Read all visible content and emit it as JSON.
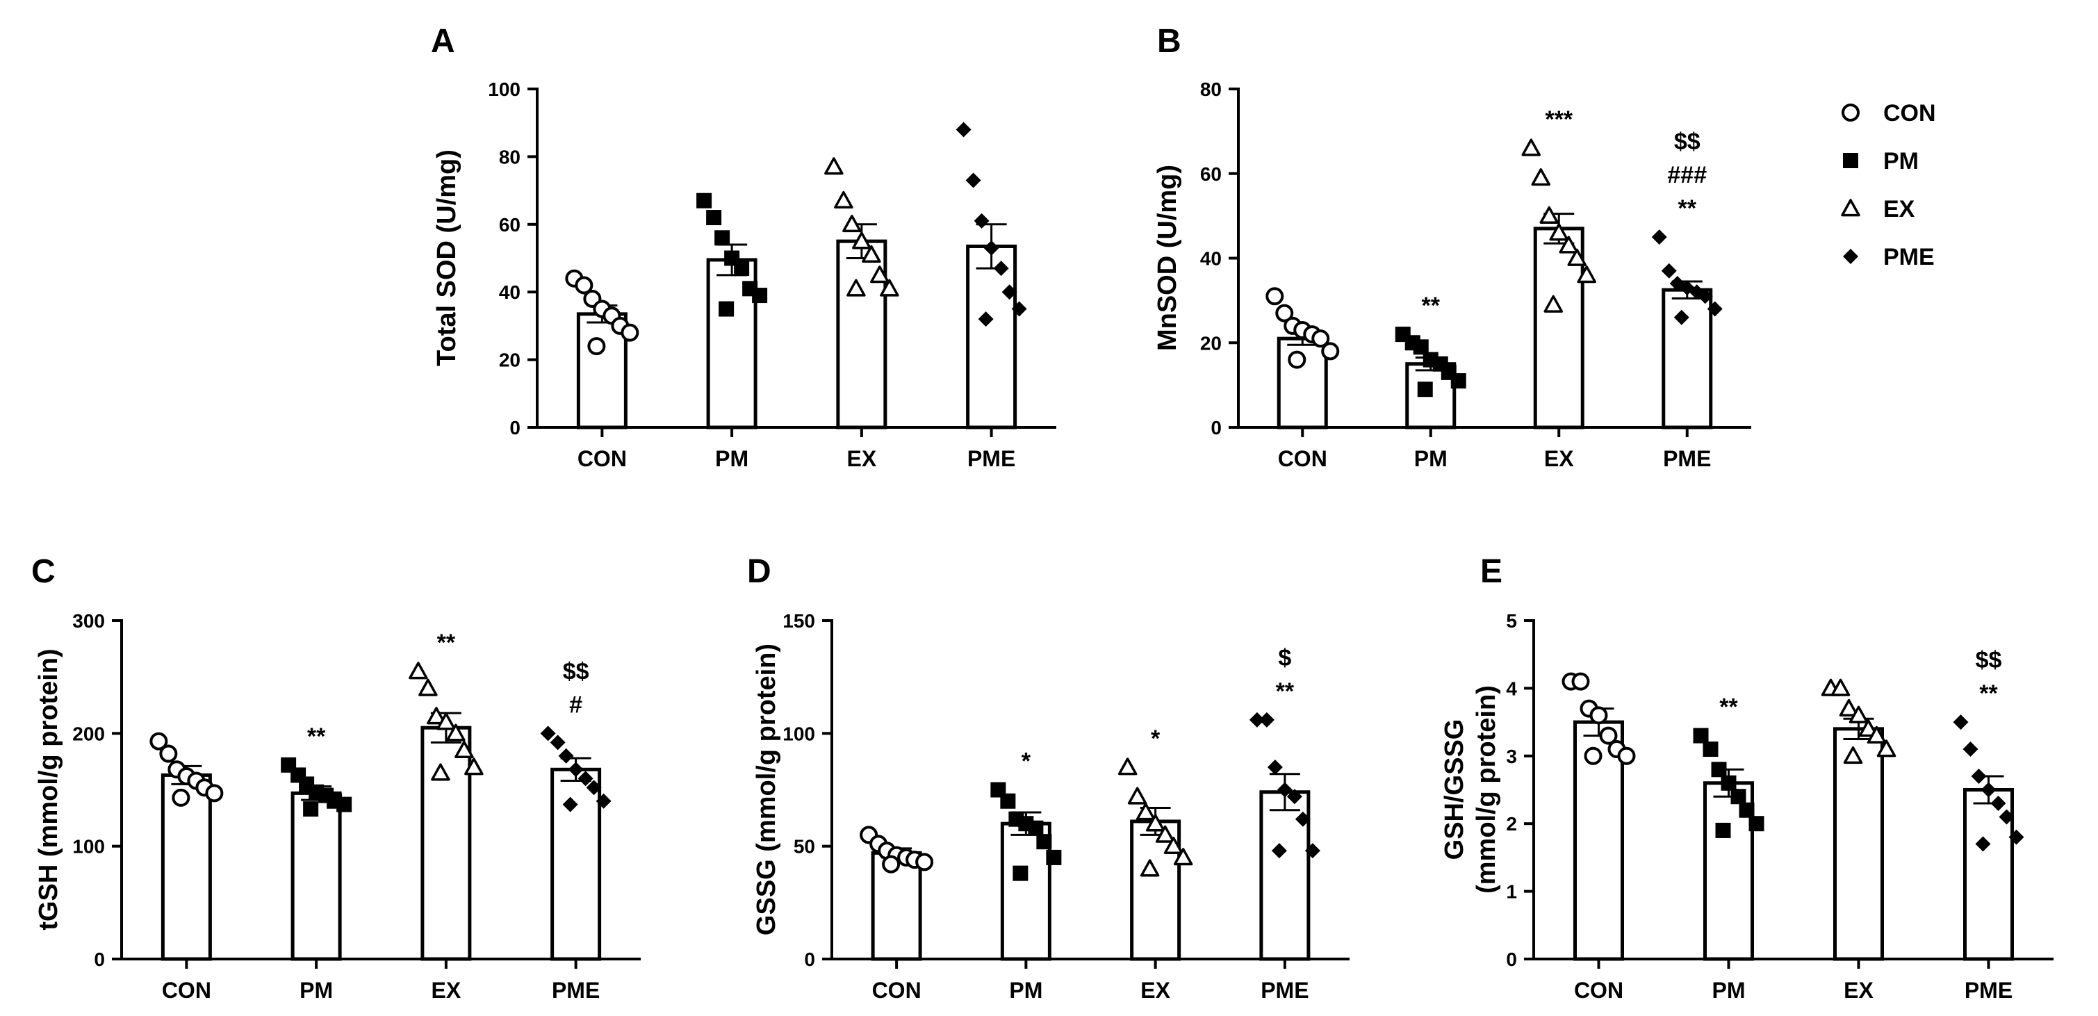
{
  "chart_data": [
    {
      "panel": "A",
      "type": "bar",
      "ylabel": "Total SOD (U/mg)",
      "ylabel_lines": [
        "Total SOD (U/mg)"
      ],
      "ylim": [
        0,
        100
      ],
      "yticks": [
        0,
        20,
        40,
        60,
        80,
        100
      ],
      "categories": [
        "CON",
        "PM",
        "EX",
        "PME"
      ],
      "values": [
        33.5,
        49.5,
        55,
        53.5
      ],
      "sem": [
        2.5,
        4.5,
        5,
        6.5
      ],
      "points": [
        [
          44,
          42,
          38,
          35,
          33,
          30,
          28,
          24
        ],
        [
          67,
          62,
          56,
          50,
          47,
          41,
          39,
          35
        ],
        [
          77,
          67,
          60,
          55,
          51,
          45,
          41,
          41
        ],
        [
          88,
          73,
          61,
          53,
          47,
          40,
          35,
          32
        ]
      ],
      "annotations": [
        [],
        [],
        [],
        []
      ]
    },
    {
      "panel": "B",
      "type": "bar",
      "ylabel": "MnSOD (U/mg)",
      "ylabel_lines": [
        "MnSOD (U/mg)"
      ],
      "ylim": [
        0,
        80
      ],
      "yticks": [
        0,
        20,
        40,
        60,
        80
      ],
      "categories": [
        "CON",
        "PM",
        "EX",
        "PME"
      ],
      "values": [
        21,
        15,
        47,
        32.5
      ],
      "sem": [
        1.5,
        1.5,
        3.5,
        2
      ],
      "points": [
        [
          31,
          27,
          24,
          23,
          22,
          21,
          18,
          16
        ],
        [
          22,
          20,
          19,
          16,
          15,
          13,
          11,
          9
        ],
        [
          66,
          59,
          50,
          46,
          43,
          40,
          36,
          29
        ],
        [
          45,
          37,
          34,
          33,
          32,
          31,
          28,
          26
        ]
      ],
      "annotations": [
        [],
        [
          "**"
        ],
        [
          "***"
        ],
        [
          "$$",
          "###",
          "**"
        ]
      ]
    },
    {
      "panel": "C",
      "type": "bar",
      "ylabel": "tGSH (mmol/g protein)",
      "ylabel_lines": [
        "tGSH (mmol/g protein)"
      ],
      "ylim": [
        0,
        300
      ],
      "yticks": [
        0,
        100,
        200,
        300
      ],
      "categories": [
        "CON",
        "PM",
        "EX",
        "PME"
      ],
      "values": [
        163,
        147,
        205,
        168
      ],
      "sem": [
        8,
        6,
        13,
        10
      ],
      "points": [
        [
          193,
          182,
          168,
          162,
          158,
          152,
          147,
          143
        ],
        [
          172,
          163,
          155,
          148,
          145,
          140,
          137,
          133
        ],
        [
          255,
          240,
          215,
          210,
          200,
          185,
          170,
          165
        ],
        [
          200,
          192,
          180,
          168,
          160,
          152,
          140,
          137
        ]
      ],
      "annotations": [
        [],
        [
          "**"
        ],
        [
          "**"
        ],
        [
          "$$",
          "#"
        ]
      ]
    },
    {
      "panel": "D",
      "type": "bar",
      "ylabel": "GSSG (mmol/g protein)",
      "ylabel_lines": [
        "GSSG (mmol/g protein)"
      ],
      "ylim": [
        0,
        150
      ],
      "yticks": [
        0,
        50,
        100,
        150
      ],
      "categories": [
        "CON",
        "PM",
        "EX",
        "PME"
      ],
      "values": [
        47,
        60,
        61,
        74
      ],
      "sem": [
        2,
        5,
        6,
        8
      ],
      "points": [
        [
          55,
          51,
          48,
          46,
          45,
          44,
          43,
          42
        ],
        [
          75,
          70,
          62,
          60,
          58,
          52,
          45,
          38
        ],
        [
          85,
          72,
          65,
          60,
          55,
          50,
          45,
          40
        ],
        [
          106,
          106,
          85,
          75,
          72,
          62,
          48,
          48
        ]
      ],
      "annotations": [
        [],
        [
          "*"
        ],
        [
          "*"
        ],
        [
          "$",
          "**"
        ]
      ]
    },
    {
      "panel": "E",
      "type": "bar",
      "ylabel": "GSH/GSSG (mmol/g protein)",
      "ylabel_lines": [
        "GSH/GSSG",
        "(mmol/g protein)"
      ],
      "ylim": [
        0,
        5
      ],
      "yticks": [
        0,
        1,
        2,
        3,
        4,
        5
      ],
      "categories": [
        "CON",
        "PM",
        "EX",
        "PME"
      ],
      "values": [
        3.5,
        2.6,
        3.4,
        2.5
      ],
      "sem": [
        0.2,
        0.2,
        0.15,
        0.2
      ],
      "points": [
        [
          4.1,
          4.1,
          3.7,
          3.6,
          3.3,
          3.1,
          3.0,
          3.0
        ],
        [
          3.3,
          3.1,
          2.8,
          2.6,
          2.4,
          2.2,
          2.0,
          1.9
        ],
        [
          4.0,
          4.0,
          3.7,
          3.6,
          3.4,
          3.3,
          3.1,
          3.0
        ],
        [
          3.5,
          3.1,
          2.7,
          2.5,
          2.3,
          2.1,
          1.8,
          1.7
        ]
      ],
      "annotations": [
        [],
        [
          "**"
        ],
        [],
        [
          "$$",
          "**"
        ]
      ]
    }
  ],
  "legend": {
    "placement": "top-right",
    "items": [
      {
        "label": "CON",
        "marker": "open-circle"
      },
      {
        "label": "PM",
        "marker": "filled-square"
      },
      {
        "label": "EX",
        "marker": "open-triangle"
      },
      {
        "label": "PME",
        "marker": "filled-diamond"
      }
    ]
  },
  "group_markers": [
    "open-circle",
    "filled-square",
    "open-triangle",
    "filled-diamond"
  ],
  "colors": {
    "ink": "#000000",
    "bar_fill": "#ffffff"
  }
}
